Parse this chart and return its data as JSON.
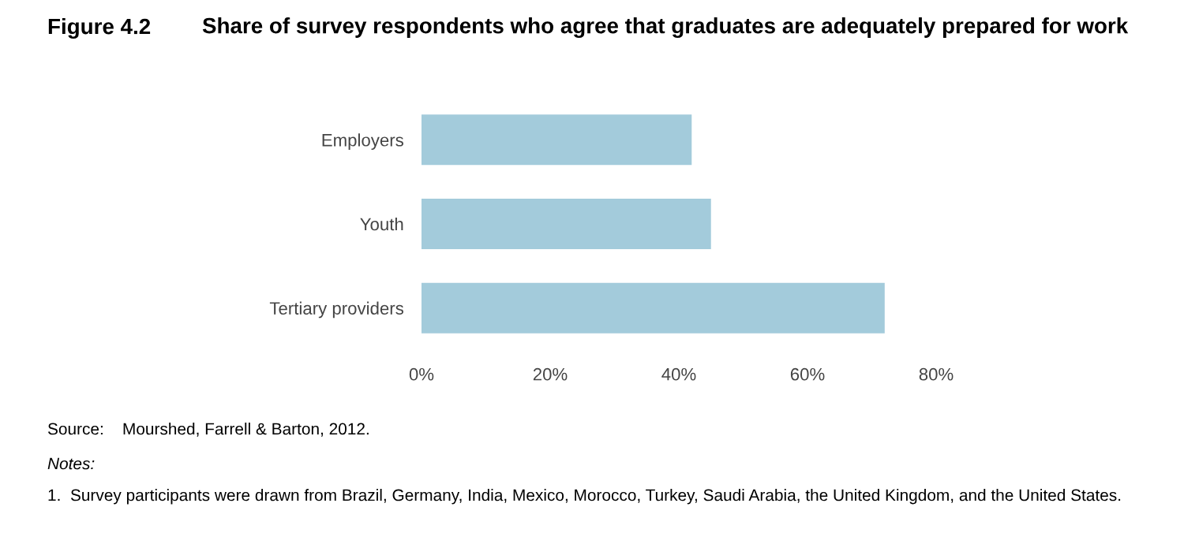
{
  "chart_data": {
    "type": "bar",
    "orientation": "horizontal",
    "title": "Figure 4.2",
    "subtitle": "Share of survey respondents who agree that graduates are adequately prepared for work",
    "categories": [
      "Employers",
      "Youth",
      "Tertiary providers"
    ],
    "values": [
      42,
      45,
      72
    ],
    "color": "#a3cbdb",
    "xlim": [
      0,
      80
    ],
    "xticks": [
      {
        "value": 0,
        "label": "0%"
      },
      {
        "value": 20,
        "label": "20%"
      },
      {
        "value": 40,
        "label": "40%"
      },
      {
        "value": 60,
        "label": "60%"
      },
      {
        "value": 80,
        "label": "80%"
      }
    ],
    "grid": false,
    "legend": false,
    "annotations": [
      "Source:    Mourshed, Farrell & Barton, 2012.",
      "Notes:",
      "1.  Survey participants were drawn from Brazil, Germany, India, Mexico, Morocco, Turkey, Saudi Arabia, the United Kingdom, and the United States."
    ]
  }
}
